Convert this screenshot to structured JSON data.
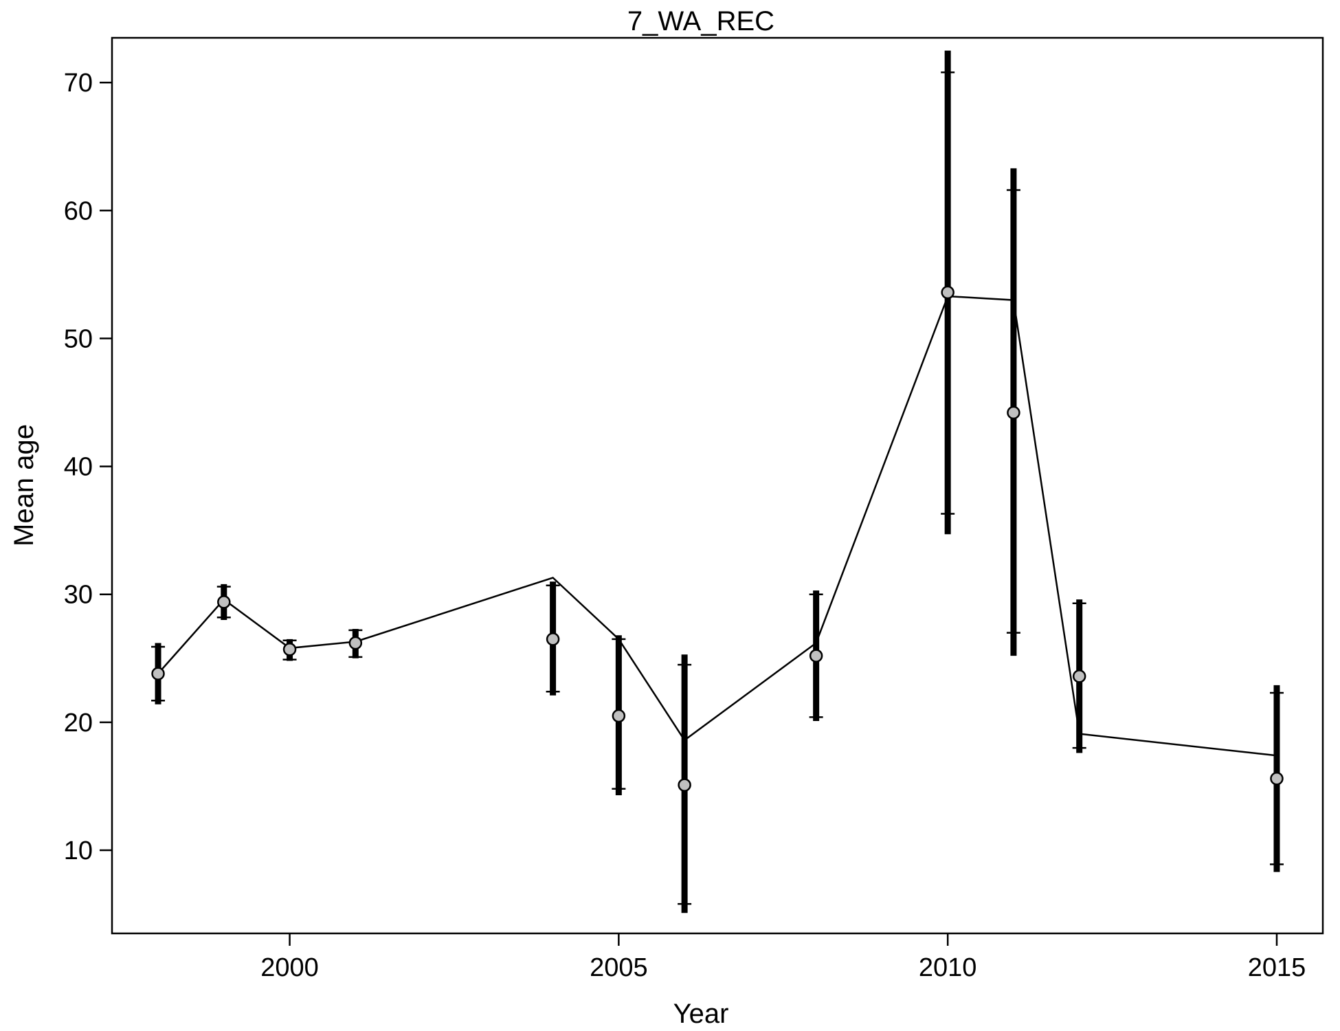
{
  "chart_data": {
    "type": "scatter",
    "title": "7_WA_REC",
    "xlabel": "Year",
    "ylabel": "Mean age",
    "xlim": [
      1997.3,
      2015.7
    ],
    "ylim": [
      3.5,
      73.5
    ],
    "xticks": [
      2000,
      2005,
      2010,
      2015
    ],
    "xtick_labels": [
      "2000",
      "2005",
      "2010",
      "2015"
    ],
    "yticks": [
      10,
      20,
      30,
      40,
      50,
      60,
      70
    ],
    "ytick_labels": [
      "10",
      "20",
      "30",
      "40",
      "50",
      "60",
      "70"
    ],
    "grid": false,
    "legend": "none",
    "colors": {
      "line": "#000000",
      "point_fill": "#c0c0c0",
      "point_stroke": "#000000",
      "errorbar": "#000000"
    },
    "years": [
      1998,
      1999,
      2000,
      2001,
      2004,
      2005,
      2006,
      2008,
      2010,
      2011,
      2012,
      2015
    ],
    "observed": [
      23.8,
      29.4,
      25.7,
      26.2,
      26.5,
      20.5,
      15.1,
      25.2,
      53.6,
      44.2,
      23.6,
      15.6
    ],
    "expected": [
      23.8,
      29.6,
      25.8,
      26.3,
      31.3,
      26.5,
      18.6,
      26.2,
      53.3,
      53.0,
      19.1,
      17.4
    ],
    "outer_lower": [
      21.4,
      28.0,
      24.8,
      25.0,
      22.1,
      14.3,
      5.1,
      20.1,
      34.7,
      25.2,
      17.6,
      8.3
    ],
    "outer_upper": [
      26.2,
      30.8,
      26.5,
      27.3,
      31.0,
      26.8,
      25.3,
      30.3,
      72.5,
      63.3,
      29.6,
      22.9
    ],
    "inner_lower": [
      21.7,
      28.2,
      24.9,
      25.1,
      22.4,
      14.8,
      5.8,
      20.4,
      36.3,
      27.0,
      18.0,
      8.9
    ],
    "inner_upper": [
      25.9,
      30.6,
      26.4,
      27.2,
      30.7,
      26.5,
      24.5,
      30.0,
      70.8,
      61.6,
      29.3,
      22.3
    ]
  }
}
